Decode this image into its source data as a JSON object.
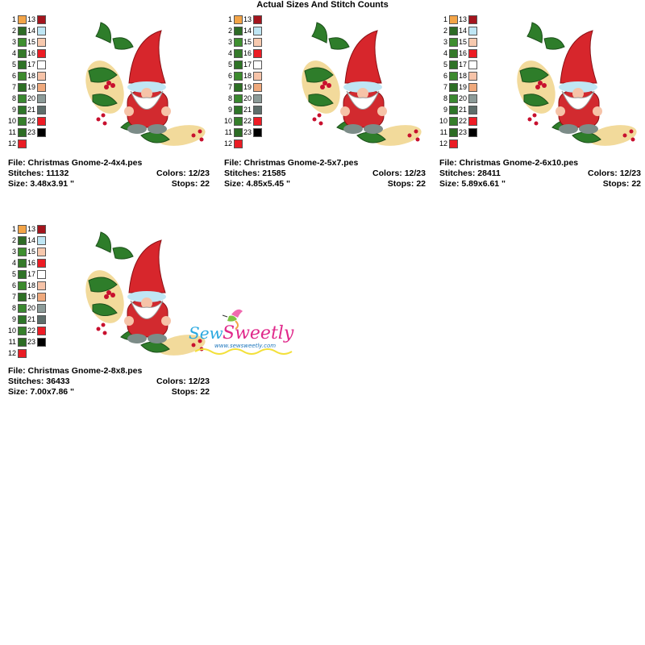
{
  "title": "Actual Sizes And Stitch Counts",
  "legend": {
    "left": [
      {
        "n": "1",
        "color": "#f3a447"
      },
      {
        "n": "2",
        "color": "#2e6b26"
      },
      {
        "n": "3",
        "color": "#3f8f30"
      },
      {
        "n": "4",
        "color": "#357a2a"
      },
      {
        "n": "5",
        "color": "#2f7327"
      },
      {
        "n": "6",
        "color": "#3c8a2e"
      },
      {
        "n": "7",
        "color": "#2d6f25"
      },
      {
        "n": "8",
        "color": "#3a8830"
      },
      {
        "n": "9",
        "color": "#2e7528"
      },
      {
        "n": "10",
        "color": "#367f2b"
      },
      {
        "n": "11",
        "color": "#2c6c24"
      },
      {
        "n": "12",
        "color": "#ea1c24"
      }
    ],
    "right": [
      {
        "n": "13",
        "color": "#a3141d"
      },
      {
        "n": "14",
        "color": "#bfe6f4"
      },
      {
        "n": "15",
        "color": "#f7c9ae"
      },
      {
        "n": "16",
        "color": "#ec1c24"
      },
      {
        "n": "17",
        "color": "#ffffff"
      },
      {
        "n": "18",
        "color": "#f6c3a8"
      },
      {
        "n": "19",
        "color": "#efa97c"
      },
      {
        "n": "20",
        "color": "#8c9b98"
      },
      {
        "n": "21",
        "color": "#5e6e6b"
      },
      {
        "n": "22",
        "color": "#ee1c25"
      },
      {
        "n": "23",
        "color": "#000000"
      }
    ]
  },
  "cards": [
    {
      "file": "File: Christmas Gnome-2-4x4.pes",
      "stitches": "Stitches: 11132",
      "colors": "Colors: 12/23",
      "size": "Size: 3.48x3.91 \"",
      "stops": "Stops: 22"
    },
    {
      "file": "File: Christmas Gnome-2-5x7.pes",
      "stitches": "Stitches: 21585",
      "colors": "Colors: 12/23",
      "size": "Size: 4.85x5.45 \"",
      "stops": "Stops: 22"
    },
    {
      "file": "File: Christmas Gnome-2-6x10.pes",
      "stitches": "Stitches: 28411",
      "colors": "Colors: 12/23",
      "size": "Size: 5.89x6.61 \"",
      "stops": "Stops: 22"
    },
    {
      "file": "File: Christmas Gnome-2-8x8.pes",
      "stitches": "Stitches: 36433",
      "colors": "Colors: 12/23",
      "size": "Size: 7.00x7.86 \"",
      "stops": "Stops: 22"
    }
  ],
  "watermark": {
    "brand": "Sew Sweetly",
    "url": "www.sewsweetly.com"
  }
}
